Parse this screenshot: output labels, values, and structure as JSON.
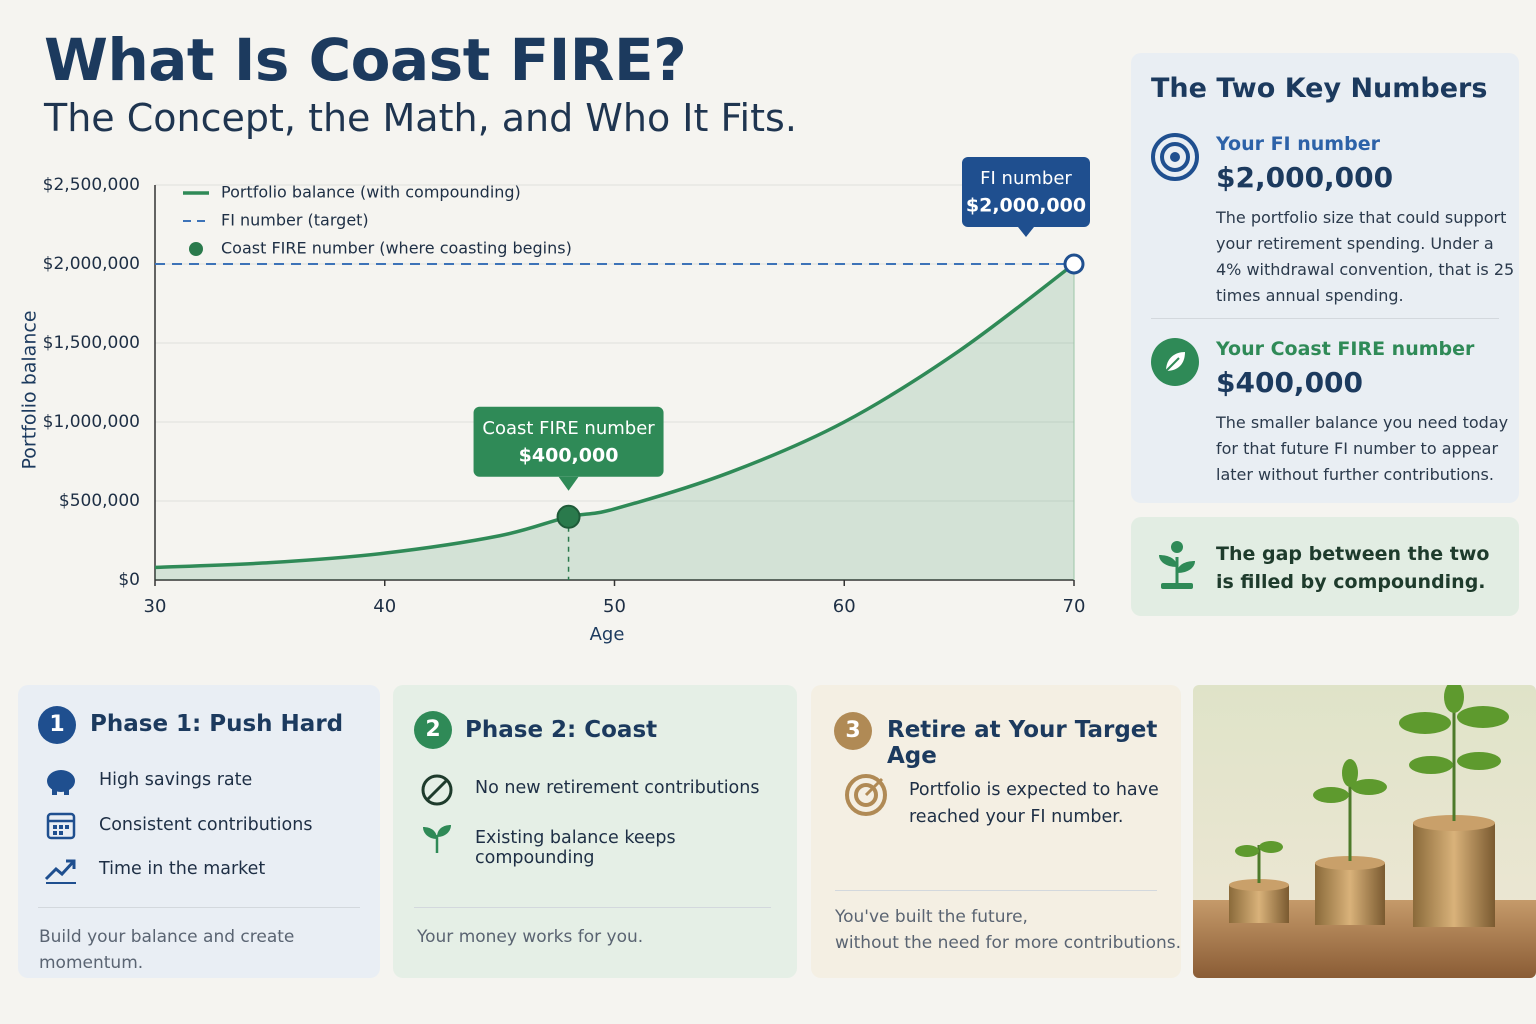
{
  "header": {
    "title": "What Is Coast FIRE?",
    "subtitle": "The Concept, the Math, and Who It Fits."
  },
  "chart_data": {
    "type": "line",
    "x_label": "Age",
    "y_label": "Portfolio balance",
    "x": [
      30,
      35,
      40,
      45,
      48,
      50,
      55,
      60,
      65,
      70
    ],
    "series": [
      {
        "name": "Portfolio balance (with compounding)",
        "color": "#2f8a57",
        "values": [
          80000,
          110000,
          170000,
          280000,
          400000,
          450000,
          680000,
          1000000,
          1450000,
          2000000
        ]
      }
    ],
    "reference_lines": [
      {
        "name": "FI number (target)",
        "color": "#3d73b8",
        "value": 2000000,
        "callout_title": "FI number",
        "value_label": "$2,000,000"
      }
    ],
    "points": [
      {
        "name": "Coast FIRE number (where coasting begins)",
        "color": "#2a7a4c",
        "x": 48,
        "value": 400000,
        "callout_title": "Coast FIRE number",
        "value_label": "$400,000"
      }
    ],
    "xlim": [
      30,
      70
    ],
    "ylim": [
      0,
      2500000
    ],
    "xticks": [
      30,
      40,
      50,
      60,
      70
    ],
    "yticks": [
      {
        "value": 0,
        "label": "$0"
      },
      {
        "value": 500000,
        "label": "$500,000"
      },
      {
        "value": 1000000,
        "label": "$1,000,000"
      },
      {
        "value": 1500000,
        "label": "$1,500,000"
      },
      {
        "value": 2000000,
        "label": "$2,000,000"
      },
      {
        "value": 2500000,
        "label": "$2,500,000"
      }
    ],
    "grid": true,
    "legend": "top-left"
  },
  "key_numbers": {
    "title": "The Two Key Numbers",
    "items": [
      {
        "label": "Your FI number",
        "value": "$2,000,000",
        "description": "The portfolio size that could support your retirement spending. Under a 4% withdrawal convention, that is 25 times annual spending."
      },
      {
        "label": "Your Coast FIRE number",
        "value": "$400,000",
        "description": "The smaller balance you need today for that future FI number to appear later without further contributions."
      }
    ]
  },
  "gap_note": [
    "The gap between the two",
    "is filled by compounding."
  ],
  "phases": [
    {
      "number": "1",
      "title": "Phase 1: Push Hard",
      "items": [
        "High savings rate",
        "Consistent contributions",
        "Time in the market"
      ],
      "footer": [
        "Build your balance and create momentum."
      ]
    },
    {
      "number": "2",
      "title": "Phase 2: Coast",
      "items": [
        "No new retirement contributions",
        "Existing balance keeps compounding"
      ],
      "footer": [
        "Your money works for you."
      ]
    },
    {
      "number": "3",
      "title": "Retire at Your Target Age",
      "items": [
        "Portfolio is expected to have reached your FI number."
      ],
      "footer": [
        "You've built the future,",
        "without the need for more contributions."
      ]
    }
  ]
}
